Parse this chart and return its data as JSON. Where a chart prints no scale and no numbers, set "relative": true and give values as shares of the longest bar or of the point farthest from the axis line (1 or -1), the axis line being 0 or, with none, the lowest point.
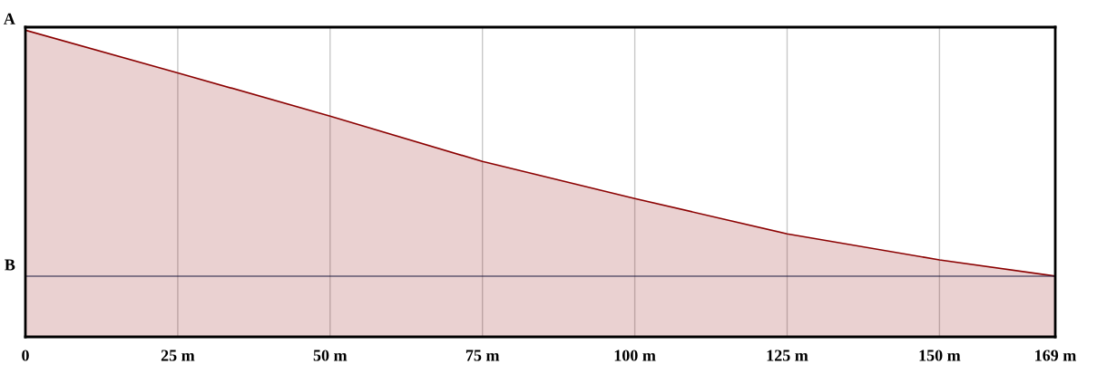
{
  "chart_data": {
    "type": "area",
    "relative": true,
    "x": [
      0,
      25,
      50,
      75,
      100,
      125,
      150,
      169
    ],
    "series": [
      {
        "color": "#8b0000",
        "values": [
          1,
          0.861,
          0.72,
          0.572,
          0.451,
          0.336,
          0.251,
          0.198
        ]
      }
    ],
    "xlim": [
      0,
      169
    ],
    "xticks": [
      0,
      {
        "value": 25,
        "label": "25 m"
      },
      {
        "value": 50,
        "label": "50 m"
      },
      {
        "value": 75,
        "label": "75 m"
      },
      {
        "value": 100,
        "label": "100 m"
      },
      {
        "value": 125,
        "label": "125 m"
      },
      {
        "value": 150,
        "label": "150 m"
      },
      {
        "value": 169,
        "label": "169 m"
      }
    ],
    "grid": "x",
    "annotations": [
      {
        "text": "A",
        "x": 0,
        "y": 1
      }
    ],
    "ref_lines": [
      {
        "axis": "y",
        "value": 0.198,
        "label": "B",
        "color": "#1a1a40"
      }
    ]
  }
}
